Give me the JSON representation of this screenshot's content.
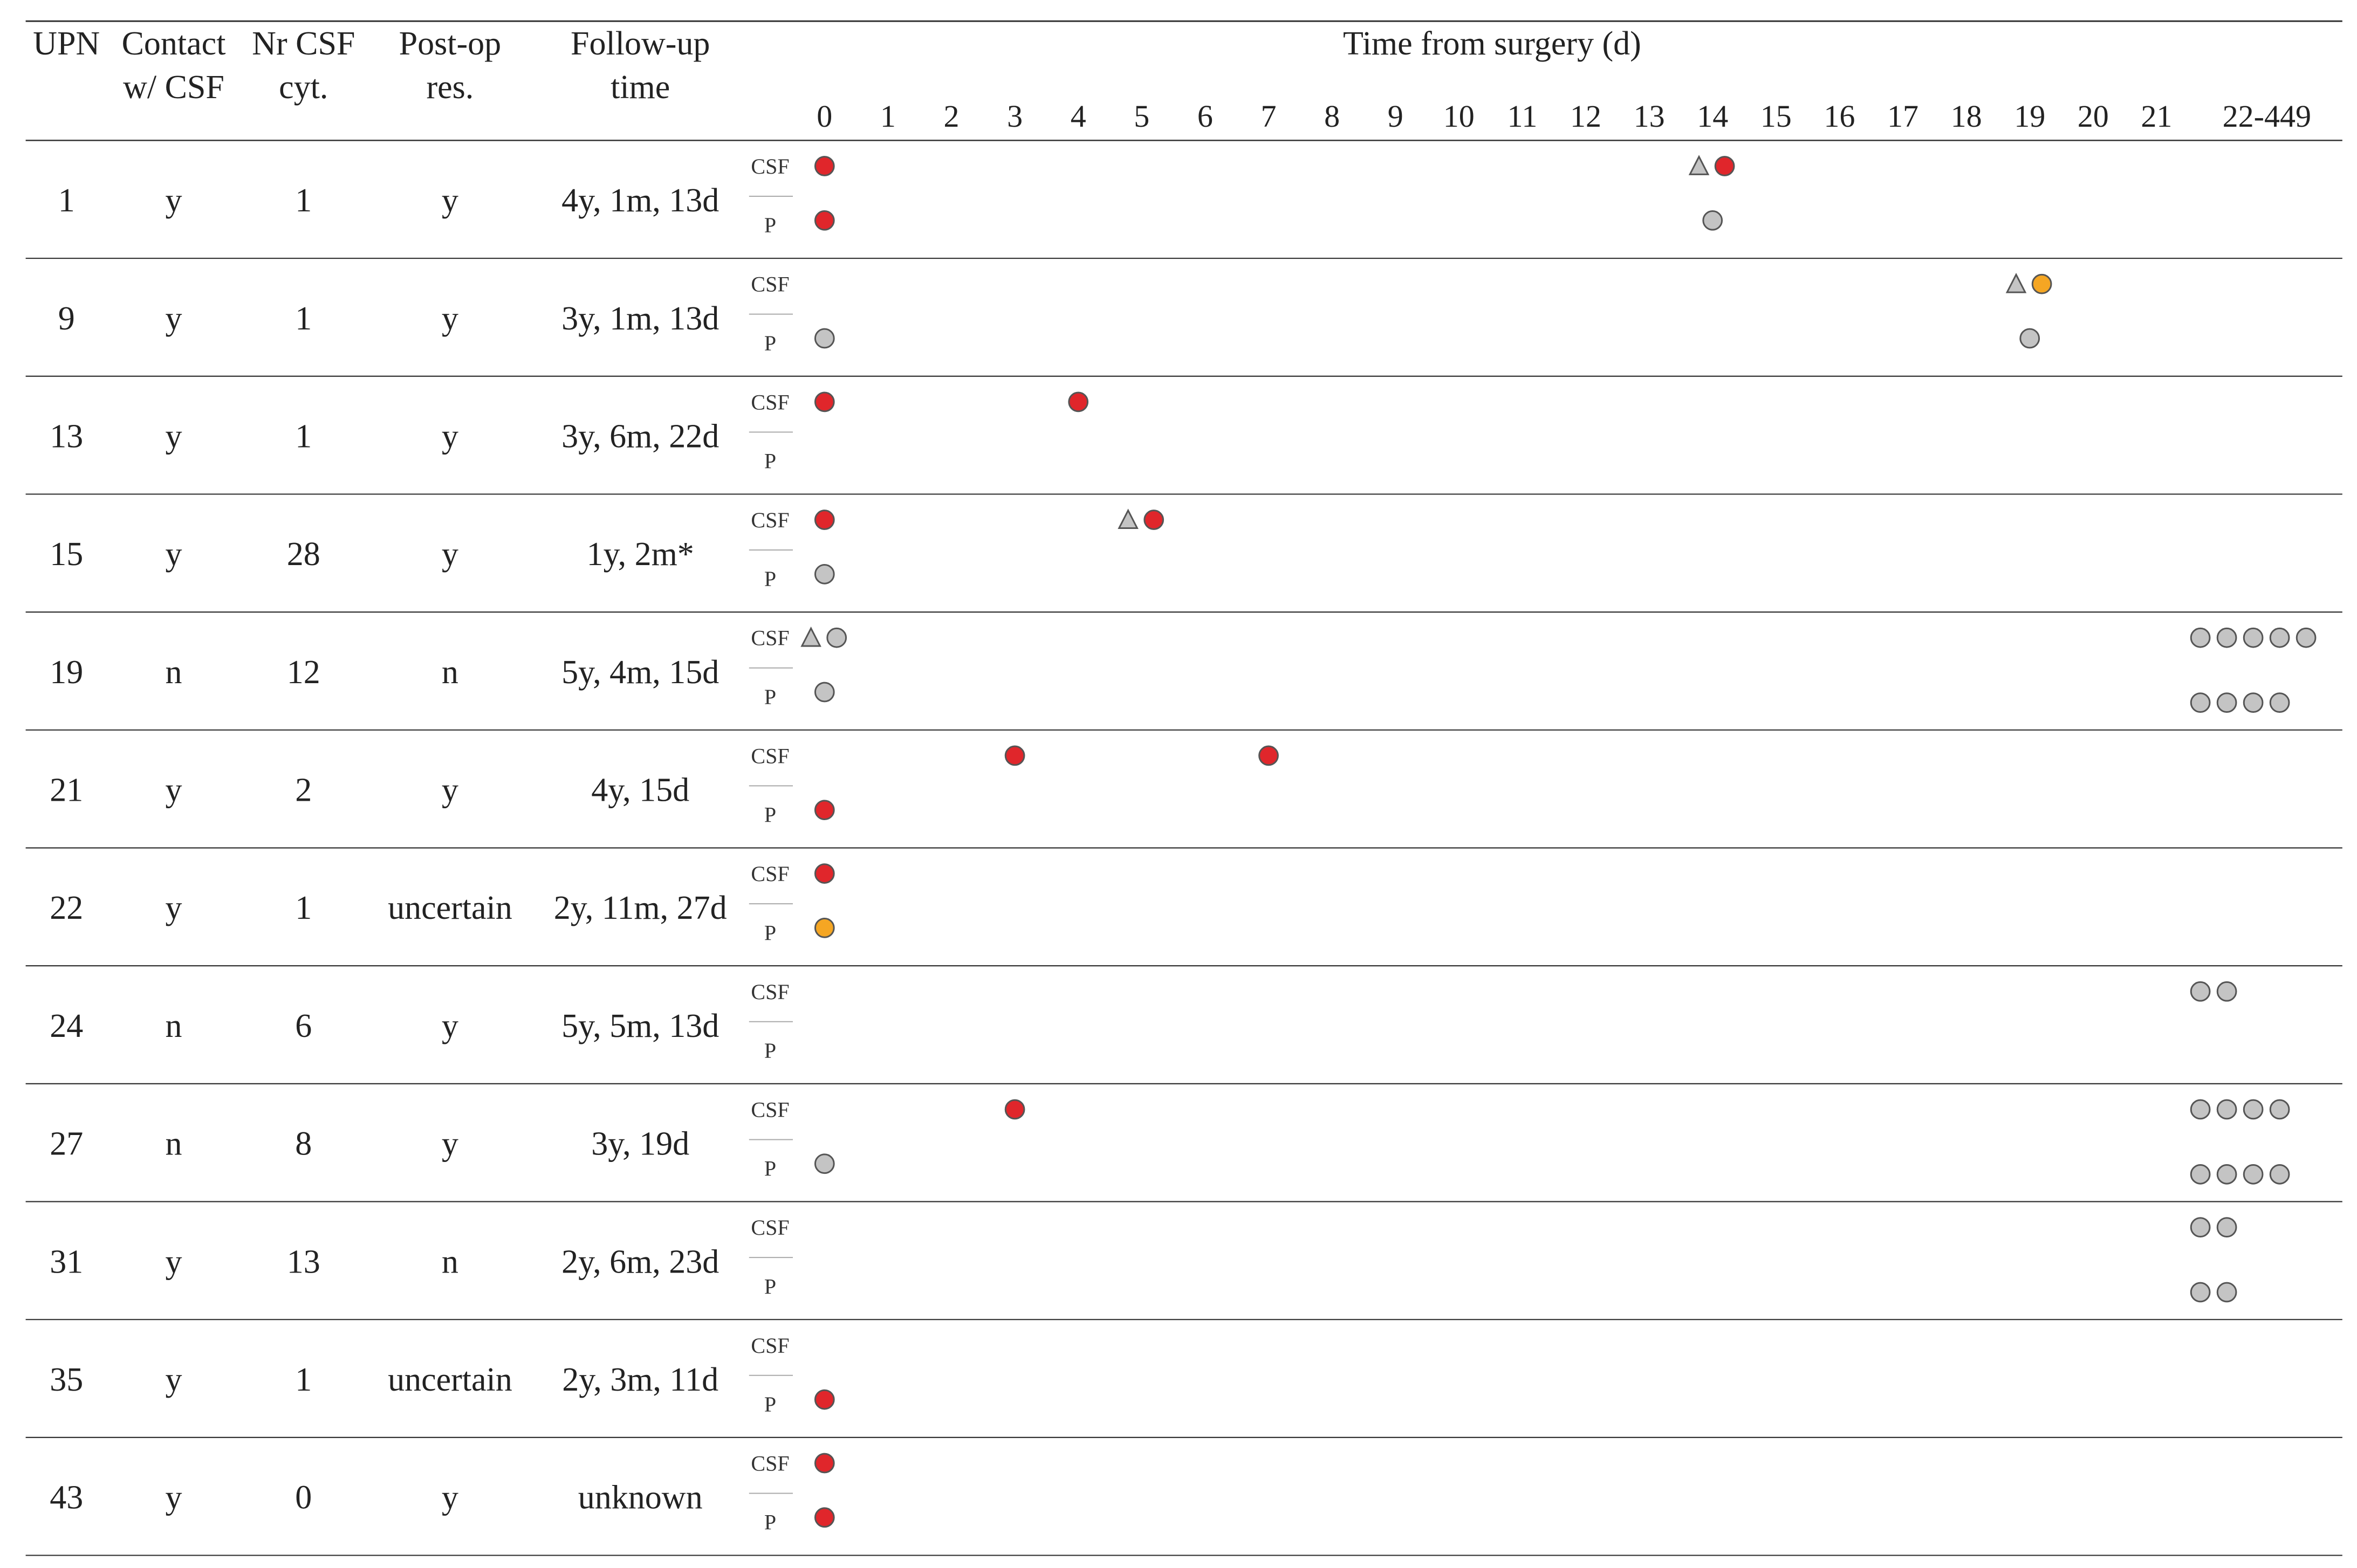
{
  "columns": {
    "upn": "UPN",
    "contact": [
      "Contact",
      "w/ CSF"
    ],
    "nrcsf": [
      "Nr CSF",
      "cyt."
    ],
    "postop": [
      "Post-op",
      "res."
    ],
    "followup": [
      "Follow-up",
      "time"
    ],
    "time": "Time from surgery (d)"
  },
  "day_ticks": [
    "0",
    "1",
    "2",
    "3",
    "4",
    "5",
    "6",
    "7",
    "8",
    "9",
    "10",
    "11",
    "12",
    "13",
    "14",
    "15",
    "16",
    "17",
    "18",
    "19",
    "20",
    "21",
    "22-449"
  ],
  "sublabels": [
    "CSF",
    "P"
  ],
  "colors": {
    "red": "#e0262b",
    "orange": "#f5a623",
    "gray": "#c4c4c4",
    "triangle": "#c4c4c4",
    "stroke": "#555555"
  },
  "rows": [
    {
      "upn": "1",
      "contact": "y",
      "nrcsf": "1",
      "postop": "y",
      "followup": "4y, 1m, 13d",
      "csf": [
        {
          "d": 0,
          "c": "red"
        },
        {
          "d": 14,
          "c": "red",
          "tri": true
        }
      ],
      "p": [
        {
          "d": 0,
          "c": "red"
        },
        {
          "d": 14,
          "c": "gray"
        }
      ],
      "late_csf": 0,
      "late_p": 0
    },
    {
      "upn": "9",
      "contact": "y",
      "nrcsf": "1",
      "postop": "y",
      "followup": "3y, 1m, 13d",
      "csf": [
        {
          "d": 19,
          "c": "orange",
          "tri": true
        }
      ],
      "p": [
        {
          "d": 0,
          "c": "gray"
        },
        {
          "d": 19,
          "c": "gray"
        }
      ],
      "late_csf": 0,
      "late_p": 0
    },
    {
      "upn": "13",
      "contact": "y",
      "nrcsf": "1",
      "postop": "y",
      "followup": "3y, 6m, 22d",
      "csf": [
        {
          "d": 0,
          "c": "red"
        },
        {
          "d": 4,
          "c": "red"
        }
      ],
      "p": [],
      "late_csf": 0,
      "late_p": 0
    },
    {
      "upn": "15",
      "contact": "y",
      "nrcsf": "28",
      "postop": "y",
      "followup": "1y, 2m*",
      "csf": [
        {
          "d": 0,
          "c": "red"
        },
        {
          "d": 5,
          "c": "red",
          "tri": true
        }
      ],
      "p": [
        {
          "d": 0,
          "c": "gray"
        }
      ],
      "late_csf": 0,
      "late_p": 0
    },
    {
      "upn": "19",
      "contact": "n",
      "nrcsf": "12",
      "postop": "n",
      "followup": "5y, 4m, 15d",
      "csf": [
        {
          "d": 0,
          "c": "gray",
          "tri": true
        }
      ],
      "p": [
        {
          "d": 0,
          "c": "gray"
        }
      ],
      "late_csf": 5,
      "late_p": 4
    },
    {
      "upn": "21",
      "contact": "y",
      "nrcsf": "2",
      "postop": "y",
      "followup": "4y, 15d",
      "csf": [
        {
          "d": 3,
          "c": "red"
        },
        {
          "d": 7,
          "c": "red"
        }
      ],
      "p": [
        {
          "d": 0,
          "c": "red"
        }
      ],
      "late_csf": 0,
      "late_p": 0
    },
    {
      "upn": "22",
      "contact": "y",
      "nrcsf": "1",
      "postop": "uncertain",
      "followup": "2y, 11m, 27d",
      "csf": [
        {
          "d": 0,
          "c": "red"
        }
      ],
      "p": [
        {
          "d": 0,
          "c": "orange"
        }
      ],
      "late_csf": 0,
      "late_p": 0
    },
    {
      "upn": "24",
      "contact": "n",
      "nrcsf": "6",
      "postop": "y",
      "followup": "5y, 5m, 13d",
      "csf": [],
      "p": [],
      "late_csf": 2,
      "late_p": 0
    },
    {
      "upn": "27",
      "contact": "n",
      "nrcsf": "8",
      "postop": "y",
      "followup": "3y, 19d",
      "csf": [
        {
          "d": 3,
          "c": "red"
        }
      ],
      "p": [
        {
          "d": 0,
          "c": "gray"
        }
      ],
      "late_csf": 4,
      "late_p": 4
    },
    {
      "upn": "31",
      "contact": "y",
      "nrcsf": "13",
      "postop": "n",
      "followup": "2y, 6m, 23d",
      "csf": [],
      "p": [],
      "late_csf": 2,
      "late_p": 2
    },
    {
      "upn": "35",
      "contact": "y",
      "nrcsf": "1",
      "postop": "uncertain",
      "followup": "2y, 3m, 11d",
      "csf": [],
      "p": [
        {
          "d": 0,
          "c": "red"
        }
      ],
      "late_csf": 0,
      "late_p": 0
    },
    {
      "upn": "43",
      "contact": "y",
      "nrcsf": "0",
      "postop": "y",
      "followup": "unknown",
      "csf": [
        {
          "d": 0,
          "c": "red"
        }
      ],
      "p": [
        {
          "d": 0,
          "c": "red"
        }
      ],
      "late_csf": 0,
      "late_p": 0
    }
  ]
}
